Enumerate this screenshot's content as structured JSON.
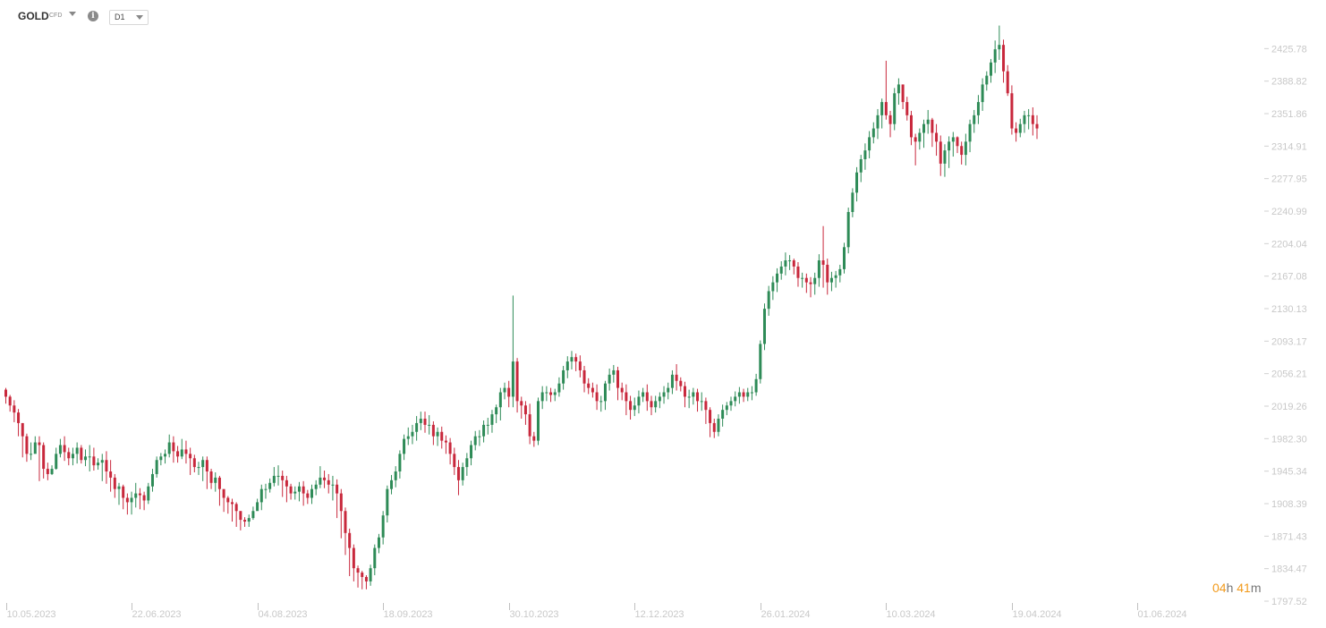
{
  "header": {
    "symbol": "GOLD",
    "symbol_type": "CFD",
    "info_icon": "info-icon",
    "timeframe": "D1"
  },
  "countdown": {
    "hours": "04",
    "hours_unit": "h",
    "minutes": "41",
    "minutes_unit": "m"
  },
  "colors": {
    "up": "#2e8b57",
    "down": "#c8283c",
    "axis_text": "#c8c8c8",
    "countdown": "#f29a1b"
  },
  "chart_data": {
    "type": "candlestick",
    "title": "",
    "xlabel": "",
    "ylabel": "",
    "grid": false,
    "ylim": [
      1797.52,
      2462.74
    ],
    "y_ticks": [
      "2425.78",
      "2388.82",
      "2351.86",
      "2314.91",
      "2277.95",
      "2240.99",
      "2204.04",
      "2167.08",
      "2130.13",
      "2093.17",
      "2056.21",
      "2019.26",
      "1982.30",
      "1945.34",
      "1908.39",
      "1871.43",
      "1834.47",
      "1797.52"
    ],
    "x_ticks": [
      {
        "label": "10.05.2023",
        "index": 0
      },
      {
        "label": "22.06.2023",
        "index": 30
      },
      {
        "label": "04.08.2023",
        "index": 60
      },
      {
        "label": "18.09.2023",
        "index": 90
      },
      {
        "label": "30.10.2023",
        "index": 120
      },
      {
        "label": "12.12.2023",
        "index": 150
      },
      {
        "label": "26.01.2024",
        "index": 180
      },
      {
        "label": "10.03.2024",
        "index": 210
      },
      {
        "label": "19.04.2024",
        "index": 240
      },
      {
        "label": "01.06.2024",
        "index": 270
      }
    ],
    "closes": [
      2030,
      2020,
      2012,
      2000,
      1985,
      1965,
      1965,
      1978,
      1975,
      1948,
      1942,
      1948,
      1965,
      1975,
      1967,
      1960,
      1965,
      1972,
      1958,
      1962,
      1962,
      1952,
      1955,
      1958,
      1945,
      1938,
      1925,
      1928,
      1915,
      1910,
      1915,
      1920,
      1918,
      1912,
      1928,
      1942,
      1958,
      1962,
      1965,
      1978,
      1968,
      1962,
      1970,
      1965,
      1960,
      1950,
      1950,
      1958,
      1945,
      1932,
      1938,
      1925,
      1915,
      1910,
      1908,
      1900,
      1890,
      1888,
      1892,
      1900,
      1910,
      1925,
      1925,
      1932,
      1940,
      1940,
      1935,
      1928,
      1920,
      1922,
      1928,
      1920,
      1915,
      1925,
      1930,
      1938,
      1935,
      1930,
      1930,
      1920,
      1900,
      1875,
      1858,
      1835,
      1830,
      1825,
      1820,
      1835,
      1858,
      1870,
      1895,
      1925,
      1935,
      1945,
      1965,
      1982,
      1985,
      1990,
      2000,
      2005,
      1998,
      1998,
      1985,
      1990,
      1980,
      1978,
      1965,
      1950,
      1935,
      1950,
      1960,
      1975,
      1985,
      1985,
      1998,
      1998,
      2010,
      2018,
      2035,
      2040,
      2030,
      2070,
      2025,
      2020,
      2010,
      1985,
      1980,
      2025,
      2035,
      2035,
      2032,
      2035,
      2045,
      2060,
      2070,
      2075,
      2070,
      2060,
      2045,
      2040,
      2035,
      2025,
      2025,
      2045,
      2055,
      2060,
      2040,
      2035,
      2025,
      2015,
      2020,
      2030,
      2035,
      2025,
      2018,
      2025,
      2030,
      2035,
      2040,
      2055,
      2048,
      2042,
      2030,
      2030,
      2035,
      2025,
      2025,
      2015,
      2000,
      1990,
      2005,
      2015,
      2020,
      2025,
      2030,
      2035,
      2030,
      2035,
      2035,
      2050,
      2090,
      2130,
      2150,
      2160,
      2170,
      2178,
      2185,
      2185,
      2178,
      2165,
      2165,
      2160,
      2158,
      2165,
      2185,
      2180,
      2160,
      2165,
      2168,
      2175,
      2200,
      2240,
      2262,
      2285,
      2300,
      2310,
      2325,
      2335,
      2350,
      2365,
      2350,
      2340,
      2375,
      2385,
      2365,
      2350,
      2325,
      2320,
      2330,
      2340,
      2345,
      2330,
      2320,
      2295,
      2310,
      2320,
      2325,
      2315,
      2305,
      2320,
      2340,
      2350,
      2365,
      2385,
      2395,
      2410,
      2425,
      2430,
      2400,
      2375,
      2335,
      2330,
      2340,
      2350,
      2350,
      2340,
      2335
    ],
    "wick_hi": [
      2040,
      2032,
      2026,
      2016,
      2000,
      1988,
      1978,
      1985,
      1985,
      1978,
      1955,
      1952,
      1972,
      1982,
      1985,
      1972,
      1972,
      1978,
      1975,
      1970,
      1975,
      1972,
      1960,
      1965,
      1968,
      1958,
      1942,
      1932,
      1930,
      1920,
      1922,
      1932,
      1926,
      1922,
      1932,
      1948,
      1962,
      1966,
      1970,
      1987,
      1985,
      1974,
      1982,
      1980,
      1972,
      1964,
      1956,
      1962,
      1962,
      1948,
      1944,
      1940,
      1924,
      1917,
      1914,
      1910,
      1900,
      1893,
      1896,
      1905,
      1914,
      1930,
      1931,
      1937,
      1950,
      1952,
      1946,
      1940,
      1931,
      1928,
      1933,
      1934,
      1924,
      1930,
      1935,
      1951,
      1946,
      1942,
      1940,
      1936,
      1925,
      1904,
      1880,
      1862,
      1838,
      1832,
      1827,
      1839,
      1862,
      1874,
      1900,
      1929,
      1941,
      1951,
      1969,
      1987,
      1995,
      1998,
      2008,
      2013,
      2013,
      2009,
      2002,
      1995,
      1996,
      1986,
      1983,
      1972,
      1958,
      1955,
      1966,
      1980,
      1991,
      1992,
      2003,
      2006,
      2015,
      2021,
      2040,
      2046,
      2048,
      2145,
      2074,
      2030,
      2025,
      2022,
      1990,
      2029,
      2042,
      2042,
      2040,
      2039,
      2052,
      2065,
      2076,
      2082,
      2079,
      2077,
      2065,
      2051,
      2046,
      2044,
      2031,
      2048,
      2062,
      2066,
      2064,
      2046,
      2044,
      2031,
      2029,
      2037,
      2040,
      2044,
      2031,
      2031,
      2035,
      2042,
      2046,
      2060,
      2067,
      2052,
      2047,
      2038,
      2040,
      2039,
      2035,
      2029,
      2018,
      2005,
      2010,
      2021,
      2024,
      2030,
      2036,
      2041,
      2039,
      2040,
      2042,
      2056,
      2094,
      2136,
      2156,
      2167,
      2176,
      2184,
      2194,
      2191,
      2187,
      2183,
      2171,
      2170,
      2166,
      2171,
      2192,
      2224,
      2187,
      2172,
      2173,
      2180,
      2205,
      2245,
      2267,
      2291,
      2305,
      2318,
      2332,
      2342,
      2357,
      2369,
      2412,
      2355,
      2381,
      2392,
      2385,
      2371,
      2355,
      2329,
      2335,
      2345,
      2356,
      2347,
      2340,
      2327,
      2317,
      2326,
      2331,
      2326,
      2320,
      2329,
      2345,
      2356,
      2373,
      2392,
      2400,
      2414,
      2435,
      2452,
      2436,
      2407,
      2384,
      2342,
      2346,
      2355,
      2357,
      2359,
      2350
    ],
    "wick_lo": [
      2022,
      2013,
      2001,
      1985,
      1961,
      1956,
      1958,
      1966,
      1934,
      1937,
      1935,
      1941,
      1947,
      1961,
      1957,
      1952,
      1952,
      1954,
      1954,
      1951,
      1945,
      1946,
      1947,
      1934,
      1931,
      1922,
      1915,
      1907,
      1902,
      1896,
      1896,
      1904,
      1902,
      1901,
      1908,
      1922,
      1938,
      1952,
      1954,
      1961,
      1955,
      1955,
      1959,
      1954,
      1941,
      1944,
      1941,
      1934,
      1925,
      1925,
      1922,
      1906,
      1899,
      1897,
      1888,
      1882,
      1878,
      1882,
      1882,
      1890,
      1902,
      1901,
      1914,
      1921,
      1928,
      1929,
      1916,
      1910,
      1913,
      1913,
      1911,
      1906,
      1908,
      1908,
      1918,
      1926,
      1926,
      1920,
      1912,
      1892,
      1869,
      1850,
      1826,
      1820,
      1813,
      1811,
      1811,
      1815,
      1827,
      1852,
      1862,
      1887,
      1919,
      1927,
      1937,
      1958,
      1975,
      1976,
      1980,
      1992,
      1989,
      1987,
      1975,
      1974,
      1971,
      1965,
      1953,
      1941,
      1918,
      1929,
      1940,
      1952,
      1969,
      1974,
      1978,
      1987,
      1989,
      2000,
      2003,
      2027,
      2018,
      2018,
      2012,
      2005,
      1998,
      1976,
      1973,
      1975,
      2016,
      2025,
      2024,
      2025,
      2030,
      2038,
      2051,
      2061,
      2059,
      2052,
      2035,
      2033,
      2029,
      2015,
      2013,
      2015,
      2037,
      2046,
      2026,
      2026,
      2009,
      2004,
      2008,
      2011,
      2024,
      2014,
      2009,
      2012,
      2017,
      2022,
      2027,
      2033,
      2037,
      2036,
      2018,
      2017,
      2021,
      2013,
      2014,
      1999,
      1984,
      1983,
      1985,
      1996,
      2009,
      2014,
      2019,
      2022,
      2024,
      2025,
      2026,
      2031,
      2045,
      2083,
      2122,
      2140,
      2149,
      2163,
      2168,
      2174,
      2169,
      2155,
      2154,
      2148,
      2143,
      2146,
      2155,
      2154,
      2146,
      2150,
      2154,
      2160,
      2170,
      2193,
      2234,
      2252,
      2274,
      2288,
      2301,
      2318,
      2323,
      2335,
      2345,
      2325,
      2333,
      2362,
      2357,
      2344,
      2316,
      2293,
      2311,
      2313,
      2329,
      2314,
      2304,
      2281,
      2280,
      2290,
      2303,
      2307,
      2294,
      2293,
      2308,
      2330,
      2340,
      2355,
      2378,
      2387,
      2398,
      2413,
      2387,
      2372,
      2328,
      2320,
      2325,
      2330,
      2334,
      2327,
      2323
    ]
  }
}
